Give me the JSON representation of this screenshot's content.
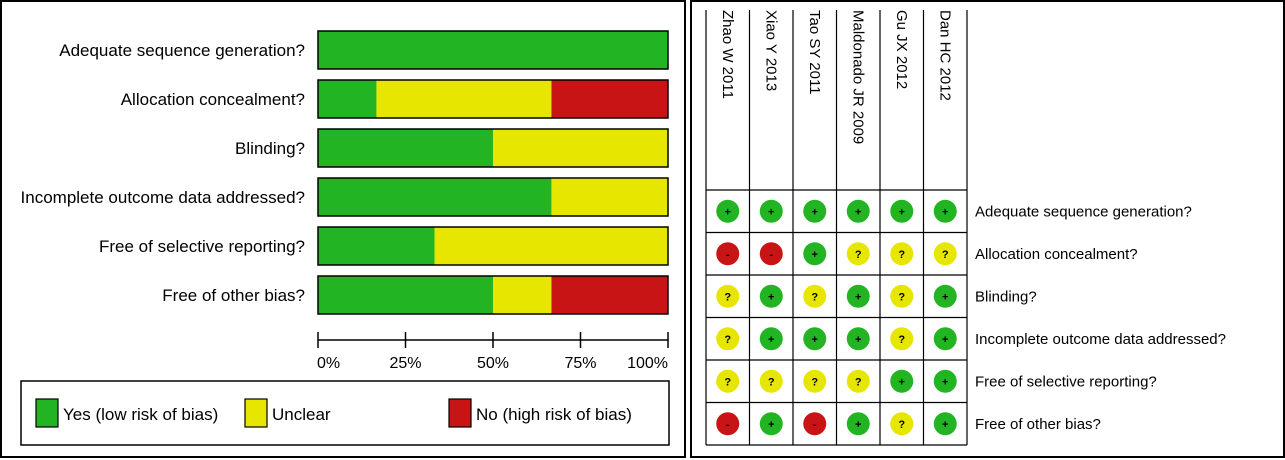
{
  "colors": {
    "yes": "#22b422",
    "unclear": "#e6e600",
    "no": "#c81414"
  },
  "left_chart": {
    "chart_data": {
      "type": "bar",
      "stacked": true,
      "orientation": "horizontal",
      "categories": [
        "Adequate sequence generation?",
        "Allocation concealment?",
        "Blinding?",
        "Incomplete outcome data addressed?",
        "Free of selective reporting?",
        "Free of other bias?"
      ],
      "series": [
        {
          "name": "Yes (low risk of bias)",
          "color": "#22b422",
          "values": [
            100,
            16.7,
            50,
            66.7,
            33.3,
            50
          ]
        },
        {
          "name": "Unclear",
          "color": "#e6e600",
          "values": [
            0,
            50,
            50,
            33.3,
            66.7,
            16.7
          ]
        },
        {
          "name": "No (high risk of bias)",
          "color": "#c81414",
          "values": [
            0,
            33.3,
            0,
            0,
            0,
            33.3
          ]
        }
      ],
      "xlim": [
        0,
        100
      ],
      "xticks": [
        "0%",
        "25%",
        "50%",
        "75%",
        "100%"
      ],
      "legend_position": "bottom"
    }
  },
  "right_table": {
    "chart_data": {
      "type": "table",
      "studies": [
        "Zhao W 2011",
        "Xiao Y 2013",
        "Tao SY 2011",
        "Maldonado JR 2009",
        "Gu JX 2012",
        "Dan HC 2012"
      ],
      "domains": [
        "Adequate sequence generation?",
        "Allocation concealment?",
        "Blinding?",
        "Incomplete outcome data addressed?",
        "Free of selective reporting?",
        "Free of other bias?"
      ],
      "judgements": [
        [
          "+",
          "+",
          "+",
          "+",
          "+",
          "+"
        ],
        [
          "-",
          "-",
          "+",
          "?",
          "?",
          "?"
        ],
        [
          "?",
          "+",
          "?",
          "+",
          "?",
          "+"
        ],
        [
          "?",
          "+",
          "+",
          "+",
          "?",
          "+"
        ],
        [
          "?",
          "?",
          "?",
          "?",
          "+",
          "+"
        ],
        [
          "-",
          "+",
          "-",
          "+",
          "?",
          "+"
        ]
      ]
    }
  }
}
